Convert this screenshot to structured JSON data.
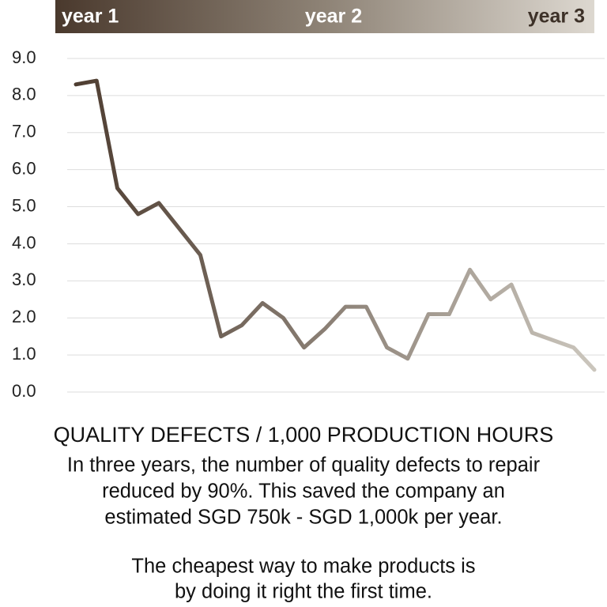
{
  "chart_data": {
    "type": "line",
    "header_labels": [
      "year 1",
      "year 2",
      "year 3"
    ],
    "title": "QUALITY DEFECTS  / 1,000 PRODUCTION HOURS",
    "caption": [
      "In three years, the number of quality defects to repair",
      "reduced by 90%. This saved the company an",
      "estimated SGD 750k - SGD 1,000k per year."
    ],
    "tagline": [
      "The cheapest way to make products is",
      "by doing it right the first time."
    ],
    "categories": [
      null,
      null,
      null,
      null,
      null,
      null,
      null,
      null,
      null,
      null,
      null,
      null,
      null,
      null,
      null,
      null,
      null,
      null,
      null,
      null,
      null,
      null,
      null,
      null,
      null,
      null
    ],
    "series": [
      {
        "name": null,
        "color_start": "#4e3d31",
        "color_end": "#cbc6bd",
        "values": [
          8.3,
          8.4,
          5.5,
          4.8,
          5.1,
          4.4,
          3.7,
          1.5,
          1.8,
          2.4,
          2.0,
          1.2,
          1.7,
          2.3,
          2.3,
          1.2,
          0.9,
          2.1,
          2.1,
          3.3,
          2.5,
          2.9,
          1.6,
          1.4,
          1.2,
          0.6
        ]
      }
    ],
    "ylim": [
      0,
      9
    ],
    "yticks": [
      {
        "value": 0,
        "label": "0.0"
      },
      {
        "value": 1,
        "label": "1.0"
      },
      {
        "value": 2,
        "label": "2.0"
      },
      {
        "value": 3,
        "label": "3.0"
      },
      {
        "value": 4,
        "label": "4.0"
      },
      {
        "value": 5,
        "label": "5.0"
      },
      {
        "value": 6,
        "label": "6.0"
      },
      {
        "value": 7,
        "label": "7.0"
      },
      {
        "value": 8,
        "label": "8.0"
      },
      {
        "value": 9,
        "label": "9.0"
      }
    ],
    "grid": true
  }
}
